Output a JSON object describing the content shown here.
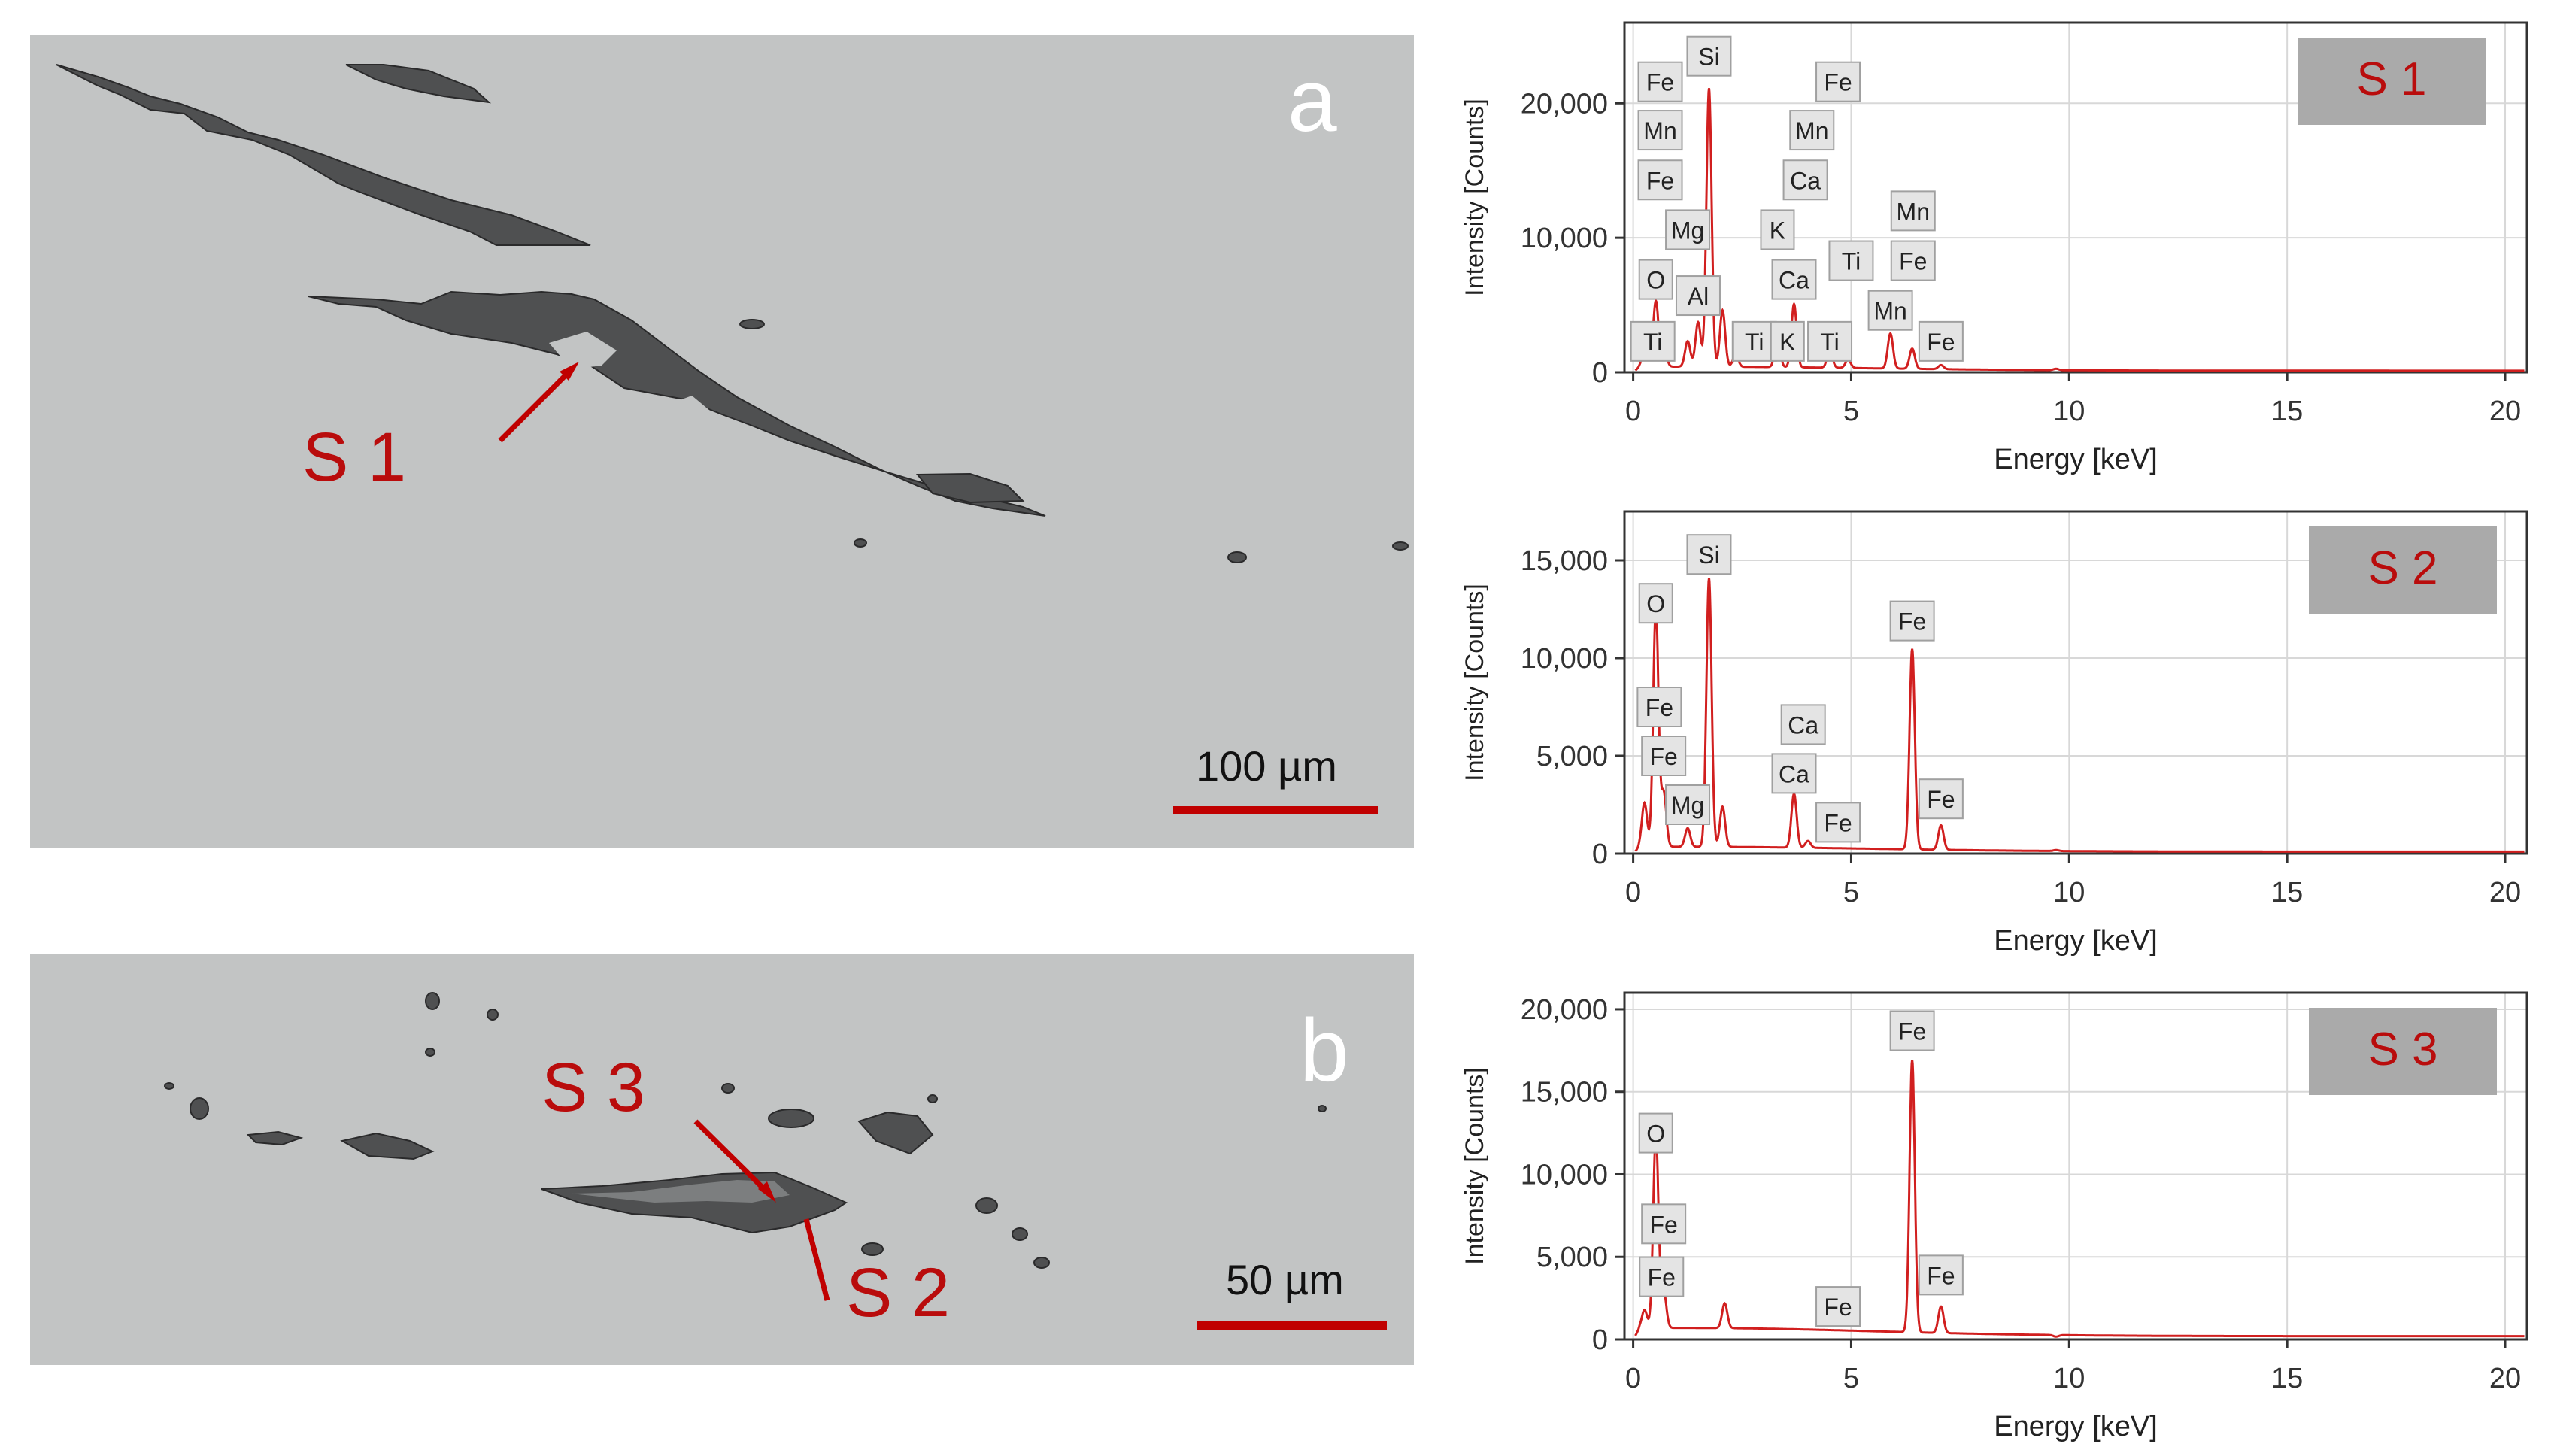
{
  "micrographs": [
    {
      "id": "a",
      "letter": "a",
      "scale_label": "100 µm",
      "sites": [
        "S 1"
      ]
    },
    {
      "id": "b",
      "letter": "b",
      "scale_label": "50 µm",
      "sites": [
        "S 3",
        "S 2"
      ]
    }
  ],
  "colors": {
    "spectrum_line": "#d11f1f",
    "site_label": "#b90c0c",
    "scale_bar": "#c00000",
    "tag_box": "#aaaaaa",
    "matrix": "#c2c4c4",
    "inclusion": "#4f5051"
  },
  "chart_data": [
    {
      "type": "line",
      "tag": "S 1",
      "xlabel": "Energy [keV]",
      "ylabel": "Intensity [Counts]",
      "xlim": [
        -0.2,
        20.5
      ],
      "ylim": [
        0,
        26000
      ],
      "xticks": [
        0,
        5,
        10,
        15,
        20
      ],
      "yticks": [
        0,
        10000,
        20000
      ],
      "ytick_labels": [
        "0",
        "10,000",
        "20,000"
      ],
      "grid": true,
      "baseline": 300,
      "peaks": [
        {
          "x": 0.27,
          "y": 1700
        },
        {
          "x": 0.52,
          "y": 5200
        },
        {
          "x": 0.71,
          "y": 1500
        },
        {
          "x": 1.25,
          "y": 2200
        },
        {
          "x": 1.49,
          "y": 3600
        },
        {
          "x": 1.74,
          "y": 21000
        },
        {
          "x": 2.05,
          "y": 4500
        },
        {
          "x": 2.35,
          "y": 1200
        },
        {
          "x": 3.31,
          "y": 2500
        },
        {
          "x": 3.69,
          "y": 5000
        },
        {
          "x": 4.51,
          "y": 1600
        },
        {
          "x": 4.93,
          "y": 900
        },
        {
          "x": 5.9,
          "y": 2900
        },
        {
          "x": 6.4,
          "y": 1800
        },
        {
          "x": 7.06,
          "y": 600
        },
        {
          "x": 9.7,
          "y": 400
        }
      ],
      "labels": [
        {
          "text": "Si",
          "x": 1.74,
          "y": 23500
        },
        {
          "text": "Fe",
          "x": 0.62,
          "y": 21600
        },
        {
          "text": "Mn",
          "x": 0.62,
          "y": 18000
        },
        {
          "text": "Fe",
          "x": 0.62,
          "y": 14300
        },
        {
          "text": "Mg",
          "x": 1.25,
          "y": 10600
        },
        {
          "text": "O",
          "x": 0.52,
          "y": 6900
        },
        {
          "text": "Al",
          "x": 1.49,
          "y": 5700
        },
        {
          "text": "Ti",
          "x": 0.45,
          "y": 2300
        },
        {
          "text": "Fe",
          "x": 4.7,
          "y": 21600
        },
        {
          "text": "Mn",
          "x": 4.1,
          "y": 18000
        },
        {
          "text": "Ca",
          "x": 3.95,
          "y": 14300
        },
        {
          "text": "K",
          "x": 3.31,
          "y": 10600
        },
        {
          "text": "Ca",
          "x": 3.69,
          "y": 6900
        },
        {
          "text": "Ti",
          "x": 5.0,
          "y": 8300
        },
        {
          "text": "Ti",
          "x": 2.78,
          "y": 2300
        },
        {
          "text": "K",
          "x": 3.54,
          "y": 2300
        },
        {
          "text": "Ti",
          "x": 4.51,
          "y": 2300
        },
        {
          "text": "Mn",
          "x": 6.42,
          "y": 12000
        },
        {
          "text": "Fe",
          "x": 6.42,
          "y": 8300
        },
        {
          "text": "Mn",
          "x": 5.9,
          "y": 4600
        },
        {
          "text": "Fe",
          "x": 7.06,
          "y": 2300
        }
      ]
    },
    {
      "type": "line",
      "tag": "S 2",
      "xlabel": "Energy [keV]",
      "ylabel": "Intensity [Counts]",
      "xlim": [
        -0.2,
        20.5
      ],
      "ylim": [
        0,
        17500
      ],
      "xticks": [
        0,
        5,
        10,
        15,
        20
      ],
      "yticks": [
        0,
        5000,
        10000,
        15000
      ],
      "ytick_labels": [
        "0",
        "5,000",
        "10,000",
        "15,000"
      ],
      "grid": true,
      "baseline": 250,
      "peaks": [
        {
          "x": 0.26,
          "y": 2500
        },
        {
          "x": 0.52,
          "y": 12500
        },
        {
          "x": 0.7,
          "y": 3000
        },
        {
          "x": 1.25,
          "y": 1200
        },
        {
          "x": 1.74,
          "y": 14000
        },
        {
          "x": 2.05,
          "y": 2300
        },
        {
          "x": 3.69,
          "y": 3000
        },
        {
          "x": 4.01,
          "y": 600
        },
        {
          "x": 6.4,
          "y": 10500
        },
        {
          "x": 7.06,
          "y": 1500
        },
        {
          "x": 9.7,
          "y": 300
        }
      ],
      "labels": [
        {
          "text": "Si",
          "x": 1.74,
          "y": 15300
        },
        {
          "text": "O",
          "x": 0.52,
          "y": 12800
        },
        {
          "text": "Fe",
          "x": 6.4,
          "y": 11900
        },
        {
          "text": "Fe",
          "x": 0.6,
          "y": 7500
        },
        {
          "text": "Fe",
          "x": 0.7,
          "y": 5000
        },
        {
          "text": "Mg",
          "x": 1.25,
          "y": 2500
        },
        {
          "text": "Ca",
          "x": 3.9,
          "y": 6600
        },
        {
          "text": "Ca",
          "x": 3.69,
          "y": 4100
        },
        {
          "text": "Fe",
          "x": 4.7,
          "y": 1600
        },
        {
          "text": "Fe",
          "x": 7.06,
          "y": 2800
        }
      ]
    },
    {
      "type": "line",
      "tag": "S 3",
      "xlabel": "Energy [keV]",
      "ylabel": "Intensity [Counts]",
      "xlim": [
        -0.2,
        20.5
      ],
      "ylim": [
        0,
        21000
      ],
      "xticks": [
        0,
        5,
        10,
        15,
        20
      ],
      "yticks": [
        0,
        5000,
        10000,
        15000,
        20000
      ],
      "ytick_labels": [
        "0",
        "5,000",
        "10,000",
        "15,000",
        "20,000"
      ],
      "grid": true,
      "baseline": 500,
      "peaks": [
        {
          "x": 0.26,
          "y": 1600
        },
        {
          "x": 0.52,
          "y": 12200
        },
        {
          "x": 0.7,
          "y": 2700
        },
        {
          "x": 2.1,
          "y": 2000
        },
        {
          "x": 6.4,
          "y": 17000
        },
        {
          "x": 7.06,
          "y": 2100
        },
        {
          "x": 9.7,
          "y": 400
        }
      ],
      "labels": [
        {
          "text": "Fe",
          "x": 6.4,
          "y": 18700
        },
        {
          "text": "O",
          "x": 0.52,
          "y": 12500
        },
        {
          "text": "Fe",
          "x": 0.7,
          "y": 7000
        },
        {
          "text": "Fe",
          "x": 0.65,
          "y": 3800
        },
        {
          "text": "Fe",
          "x": 4.7,
          "y": 2000
        },
        {
          "text": "Fe",
          "x": 7.06,
          "y": 3900
        }
      ]
    }
  ]
}
